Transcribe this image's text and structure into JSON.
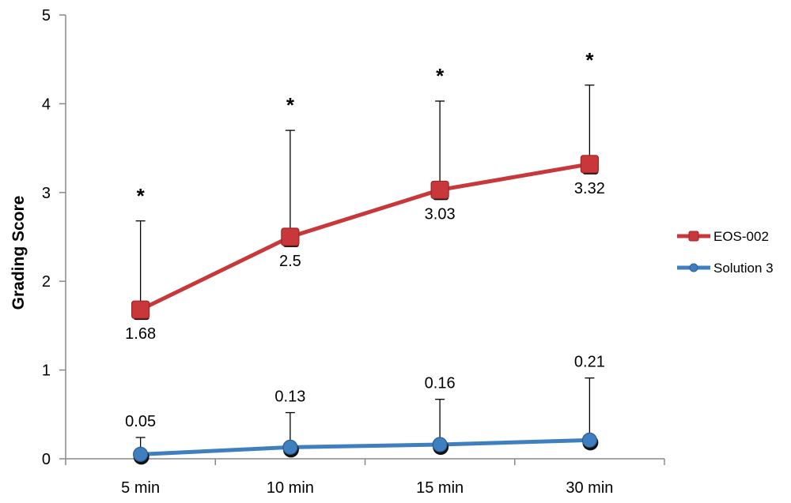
{
  "chart_data": {
    "type": "line",
    "categories": [
      "5 min",
      "10 min",
      "15 min",
      "30 min"
    ],
    "ylabel": "Grading Score",
    "xlabel": "",
    "ylim": [
      0,
      5
    ],
    "yticks": [
      0,
      1,
      2,
      3,
      4,
      5
    ],
    "grid": false,
    "legend_position": "right",
    "significance_marker": "*",
    "series": [
      {
        "name": "EOS-002",
        "color": "#c8383a",
        "marker": "square",
        "values": [
          1.68,
          2.5,
          3.03,
          3.32
        ],
        "value_labels": [
          "1.68",
          "2.5",
          "3.03",
          "3.32"
        ],
        "error_upper": [
          2.68,
          3.7,
          4.03,
          4.21
        ],
        "significant": [
          true,
          true,
          true,
          true
        ]
      },
      {
        "name": "Solution 3",
        "color": "#3f7fbf",
        "marker": "diamond",
        "values": [
          0.05,
          0.13,
          0.16,
          0.21
        ],
        "value_labels": [
          "0.05",
          "0.13",
          "0.16",
          "0.21"
        ],
        "error_upper": [
          0.24,
          0.52,
          0.67,
          0.91
        ],
        "significant": [
          false,
          false,
          false,
          false
        ]
      }
    ]
  }
}
